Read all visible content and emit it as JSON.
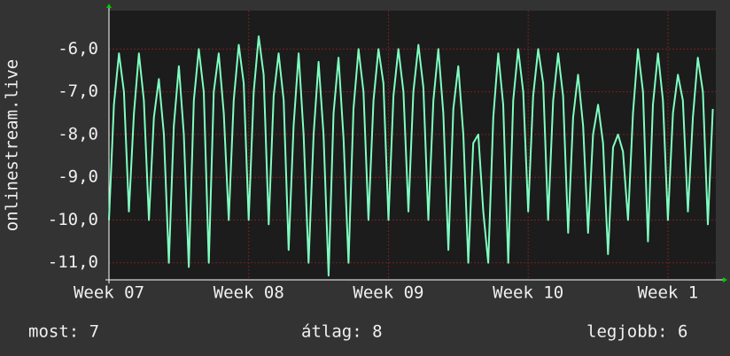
{
  "chart_data": {
    "type": "line",
    "y_label": "onlinestream.live",
    "color": "#7fffc0",
    "grid": true,
    "xlim": [
      0,
      30.4
    ],
    "ylim": [
      -11.4,
      -5.1
    ],
    "xticks": [
      {
        "value": 0,
        "label": "Week 07"
      },
      {
        "value": 7,
        "label": "Week 08"
      },
      {
        "value": 14,
        "label": "Week 09"
      },
      {
        "value": 21,
        "label": "Week 10"
      },
      {
        "value": 28,
        "label": "Week 1"
      }
    ],
    "yticks": [
      {
        "value": -11,
        "label": "-11,0"
      },
      {
        "value": -10,
        "label": "-10,0"
      },
      {
        "value": -9,
        "label": "-9,0"
      },
      {
        "value": -8,
        "label": "-8,0"
      },
      {
        "value": -7,
        "label": "-7,0"
      },
      {
        "value": -6,
        "label": "-6,0"
      }
    ],
    "x": [
      0,
      0.25,
      0.5,
      0.75,
      1,
      1.25,
      1.5,
      1.75,
      2,
      2.25,
      2.5,
      2.75,
      3,
      3.25,
      3.5,
      3.75,
      4,
      4.25,
      4.5,
      4.75,
      5,
      5.25,
      5.5,
      5.75,
      6,
      6.25,
      6.5,
      6.75,
      7,
      7.25,
      7.5,
      7.75,
      8,
      8.25,
      8.5,
      8.75,
      9,
      9.25,
      9.5,
      9.75,
      10,
      10.25,
      10.5,
      10.75,
      11,
      11.25,
      11.5,
      11.75,
      12,
      12.25,
      12.5,
      12.75,
      13,
      13.25,
      13.5,
      13.75,
      14,
      14.25,
      14.5,
      14.75,
      15,
      15.25,
      15.5,
      15.75,
      16,
      16.25,
      16.5,
      16.75,
      17,
      17.25,
      17.5,
      17.75,
      18,
      18.25,
      18.5,
      18.75,
      19,
      19.25,
      19.5,
      19.75,
      20,
      20.25,
      20.5,
      20.75,
      21,
      21.25,
      21.5,
      21.75,
      22,
      22.25,
      22.5,
      22.75,
      23,
      23.25,
      23.5,
      23.75,
      24,
      24.25,
      24.5,
      24.75,
      25,
      25.25,
      25.5,
      25.75,
      26,
      26.25,
      26.5,
      26.75,
      27,
      27.25,
      27.5,
      27.75,
      28,
      28.25,
      28.5,
      28.75,
      29,
      29.25,
      29.5,
      29.75,
      30,
      30.25
    ],
    "values": [
      -10.0,
      -7.3,
      -6.1,
      -7.0,
      -9.8,
      -7.5,
      -6.1,
      -7.2,
      -10.0,
      -7.6,
      -6.7,
      -8.0,
      -11.0,
      -7.8,
      -6.4,
      -8.0,
      -11.1,
      -7.2,
      -6.0,
      -7.0,
      -11.0,
      -7.0,
      -6.1,
      -7.5,
      -10.0,
      -7.2,
      -5.9,
      -6.8,
      -10.0,
      -7.0,
      -5.7,
      -6.6,
      -10.1,
      -7.1,
      -6.1,
      -7.2,
      -10.7,
      -7.8,
      -6.1,
      -8.0,
      -11.0,
      -8.0,
      -6.3,
      -8.0,
      -11.3,
      -7.5,
      -6.2,
      -8.1,
      -11.0,
      -7.4,
      -6.0,
      -7.0,
      -10.0,
      -7.2,
      -6.0,
      -6.8,
      -10.0,
      -7.1,
      -6.0,
      -7.0,
      -9.8,
      -7.0,
      -5.9,
      -6.9,
      -10.0,
      -7.2,
      -6.0,
      -7.5,
      -10.7,
      -7.4,
      -6.4,
      -8.0,
      -11.0,
      -8.2,
      -8.0,
      -9.8,
      -11.0,
      -7.6,
      -6.1,
      -7.3,
      -11.0,
      -7.2,
      -6.0,
      -7.0,
      -9.8,
      -7.1,
      -6.0,
      -6.8,
      -10.0,
      -7.2,
      -6.1,
      -7.1,
      -10.3,
      -7.6,
      -6.6,
      -7.8,
      -10.3,
      -8.0,
      -7.3,
      -8.2,
      -10.8,
      -8.3,
      -8.0,
      -8.4,
      -10.0,
      -7.5,
      -6.0,
      -7.0,
      -10.5,
      -7.3,
      -6.1,
      -7.2,
      -10.0,
      -7.5,
      -6.6,
      -7.2,
      -9.8,
      -7.6,
      -6.2,
      -7.0,
      -10.1,
      -7.4
    ]
  },
  "footer": {
    "current": "most: 7",
    "average": "átlag: 8",
    "best": "legjobb: 6"
  }
}
